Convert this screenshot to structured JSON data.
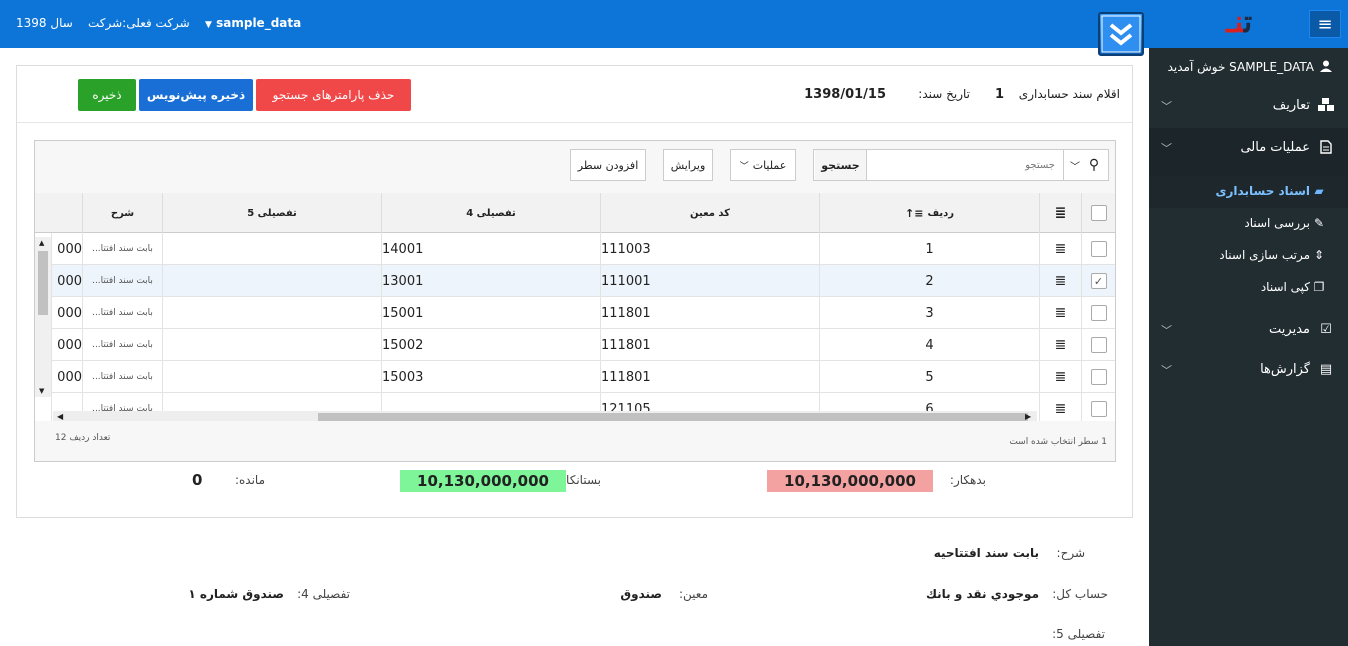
{
  "topbar": {
    "year": "سال 1398",
    "company": "شرکت فعلی:شرکت",
    "dataset": "sample_data",
    "dataset_arrow": "▼",
    "menu_icon": "≡",
    "logo_text": "ت",
    "logo_red": "نـ"
  },
  "sidebar": {
    "welcome": "SAMPLE_DATA خوش آمدید",
    "items": [
      {
        "label": "تعاریف",
        "icon": "cubes-icon"
      },
      {
        "label": "عملیات مالی",
        "icon": "file-icon"
      },
      {
        "label": "مدیریت",
        "icon": "check-square-icon"
      },
      {
        "label": "گزارش‌ها",
        "icon": "newspaper-icon"
      }
    ],
    "subitems": [
      {
        "label": "اسناد حسابداری",
        "active": true
      },
      {
        "label": "بررسی اسناد"
      },
      {
        "label": "مرتب سازی اسناد"
      },
      {
        "label": "کپی اسناد"
      }
    ]
  },
  "doc": {
    "items_label": "اقلام سند حسابداری",
    "doc_number": "1",
    "date_label": "تاریخ سند:",
    "date_value": "1398/01/15",
    "btn_clear": "حذف پارامترهای جستجو",
    "btn_draft": "ذخیره پیش‌نویس",
    "btn_save": "ذخیره"
  },
  "grid": {
    "search_placeholder": "جستجو",
    "search_btn": "جستجو",
    "ops_label": "عملیات",
    "edit_label": "ویرایش",
    "add_row_label": "افزودن سطر",
    "columns": {
      "row": "ردیف",
      "moein": "کد معین",
      "tafsili4": "تفصیلی 4",
      "tafsili5": "تفصیلی 5",
      "sharh": "شرح"
    },
    "rows": [
      {
        "radif": "1",
        "moein": "111003",
        "t4": "14001",
        "sharh": "بابت سند افتتا...",
        "amt": "000"
      },
      {
        "radif": "2",
        "moein": "111001",
        "t4": "13001",
        "sharh": "بابت سند افتتا...",
        "amt": "000"
      },
      {
        "radif": "3",
        "moein": "111801",
        "t4": "15001",
        "sharh": "بابت سند افتتا...",
        "amt": "000"
      },
      {
        "radif": "4",
        "moein": "111801",
        "t4": "15002",
        "sharh": "بابت سند افتتا...",
        "amt": "000"
      },
      {
        "radif": "5",
        "moein": "111801",
        "t4": "15003",
        "sharh": "بابت سند افتتا...",
        "amt": "000"
      },
      {
        "radif": "6",
        "moein": "121105",
        "t4": "",
        "sharh": "بابت سند افتتا...",
        "amt": ""
      }
    ],
    "selected_info": "1 سطر انتخاب شده است",
    "row_count": "تعداد ردیف 12"
  },
  "totals": {
    "debit_label": "بدهکار:",
    "debit": "10,130,000,000",
    "credit_label": "بستانکار:",
    "credit": "10,130,000,000",
    "remain_label": "مانده:",
    "remain": "0"
  },
  "details": {
    "sharh_label": "شرح:",
    "sharh": "بابت سند افتتاحیه",
    "kol_label": "حساب کل:",
    "kol": "موجودي نقد و بانك",
    "moein_label": "معین:",
    "moein": "صندوق",
    "t4_label": "تفصیلی 4:",
    "t4": "صندوق شماره ۱",
    "t5_label": "تفصیلی 5:"
  },
  "colors": {
    "topbar": "#0d75d8",
    "sidebar": "#222d32",
    "debit_bg": "#f4a1a1",
    "credit_bg": "#7ff59a",
    "btn_red": "#f04848",
    "btn_blue": "#1a6fd6",
    "btn_green": "#2aa22a"
  }
}
